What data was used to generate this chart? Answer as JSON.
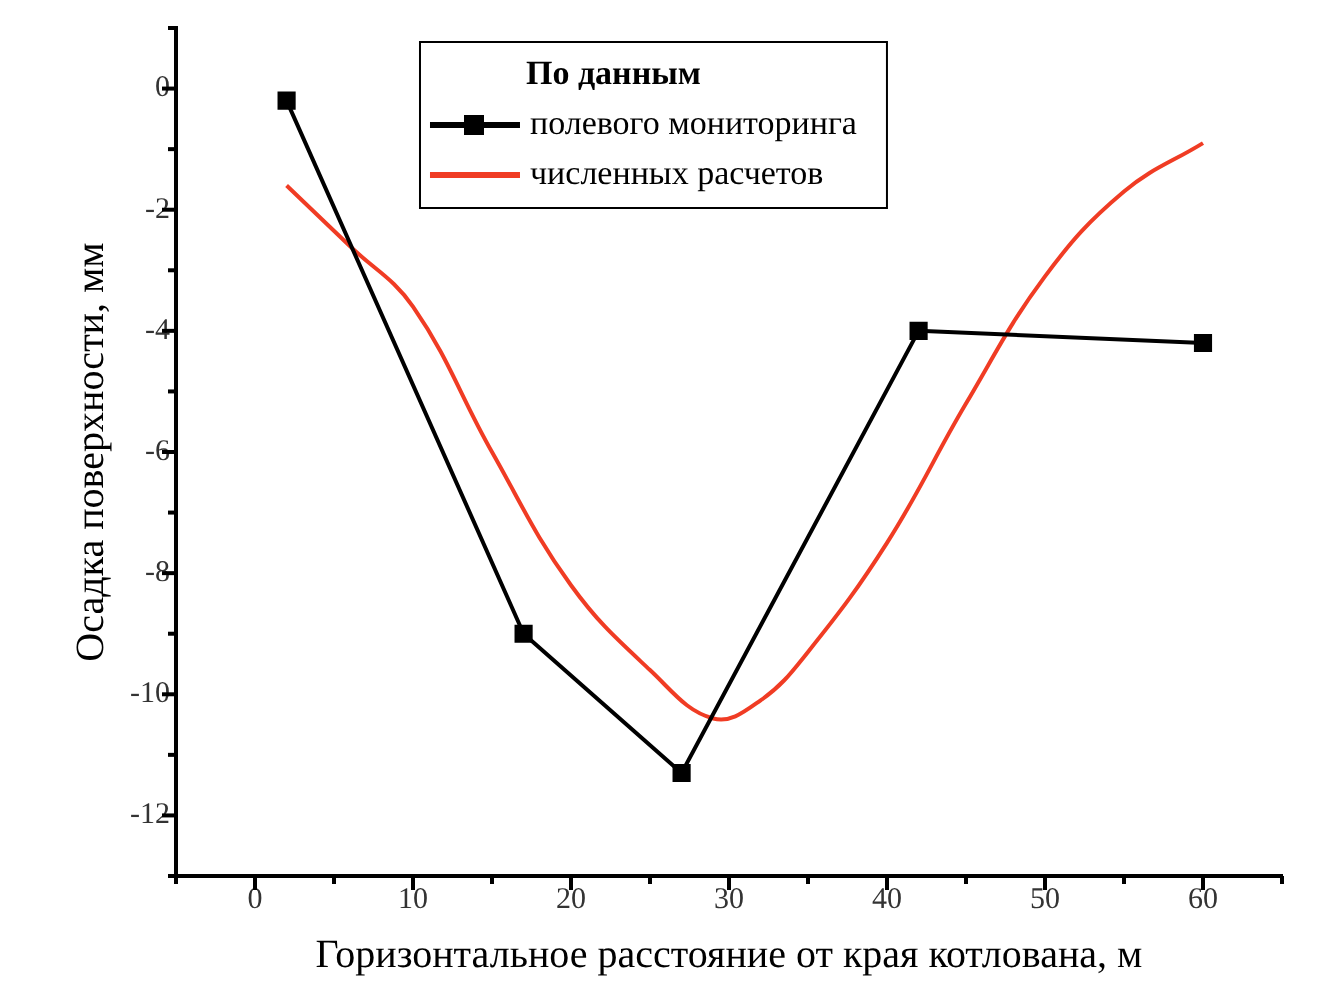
{
  "chart_data": {
    "type": "line",
    "xlabel": "Горизонтальное расстояние от края котлована, м",
    "ylabel": "Осадка поверхности, мм",
    "legend_title": "По данным",
    "legend": "top",
    "grid": false,
    "xlim": [
      -5,
      65
    ],
    "xticks": [
      {
        "value": -5,
        "label": null
      },
      0,
      {
        "value": 5,
        "label": null
      },
      10,
      {
        "value": 15,
        "label": null
      },
      20,
      {
        "value": 25,
        "label": null
      },
      30,
      {
        "value": 35,
        "label": null
      },
      40,
      {
        "value": 45,
        "label": null
      },
      50,
      {
        "value": 55,
        "label": null
      },
      60,
      {
        "value": 65,
        "label": null
      }
    ],
    "ylim": [
      -13,
      1
    ],
    "yticks": [
      {
        "value": -13,
        "label": null
      },
      -12,
      {
        "value": -11,
        "label": null
      },
      -10,
      {
        "value": -9,
        "label": null
      },
      -8,
      {
        "value": -7,
        "label": null
      },
      -6,
      {
        "value": -5,
        "label": null
      },
      -4,
      {
        "value": -3,
        "label": null
      },
      -2,
      {
        "value": -1,
        "label": null
      },
      0,
      {
        "value": 1,
        "label": null
      }
    ],
    "series": [
      {
        "name": "полевого мониторинга",
        "color": "#000000",
        "marker": "square",
        "x": [
          2,
          17,
          27,
          42,
          60
        ],
        "values": [
          -0.2,
          -9,
          -11.3,
          -4,
          -4.2
        ]
      },
      {
        "name": "численных расчетов",
        "color": "#f03c24",
        "marker": "none",
        "x": [
          2,
          6,
          10,
          15,
          20,
          25,
          29,
          32,
          35,
          40,
          45,
          50,
          55,
          60
        ],
        "values": [
          -1.6,
          -2.6,
          -3.6,
          -6,
          -8.2,
          -9.6,
          -10.4,
          -10.1,
          -9.3,
          -7.5,
          -5.2,
          -3.1,
          -1.7,
          -0.9
        ]
      }
    ]
  }
}
